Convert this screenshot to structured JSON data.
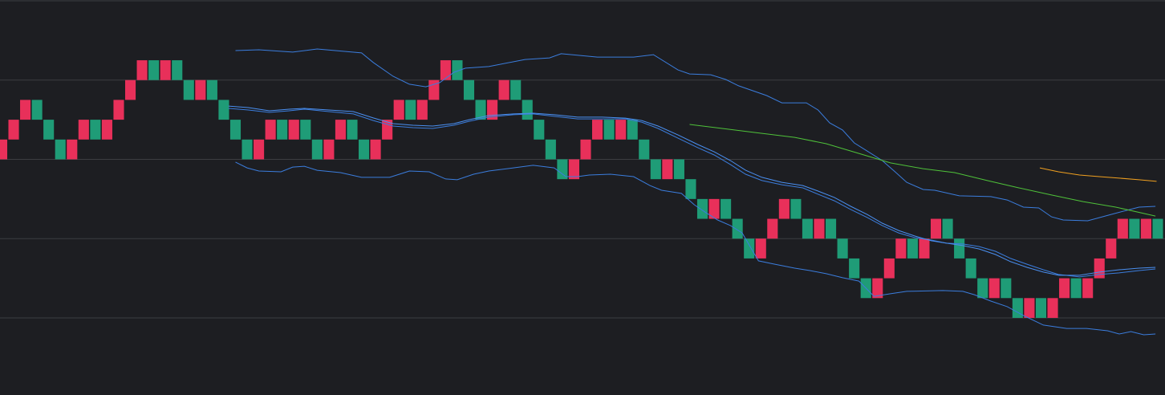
{
  "chart_data": {
    "type": "renko",
    "up_color": "#e8305a",
    "down_color": "#1f9c77",
    "background": "#1d1e22",
    "grid": true,
    "grid_color": "#3c3d41",
    "xlim": [
      -0.17,
      99.62
    ],
    "ylim": [
      0.11,
      20.04
    ],
    "yticks": [
      4,
      8,
      12,
      16,
      20
    ],
    "open": [
      12,
      13,
      14,
      15,
      14,
      13,
      12,
      13,
      14,
      13,
      14,
      15,
      16,
      17,
      16,
      17,
      16,
      15,
      16,
      15,
      14,
      13,
      12,
      13,
      14,
      13,
      14,
      13,
      12,
      13,
      14,
      13,
      12,
      13,
      14,
      15,
      14,
      15,
      16,
      17,
      16,
      15,
      14,
      15,
      16,
      15,
      14,
      13,
      12,
      11,
      12,
      13,
      14,
      13,
      14,
      13,
      12,
      11,
      12,
      11,
      10,
      9,
      10,
      9,
      8,
      7,
      8,
      9,
      10,
      9,
      8,
      9,
      8,
      7,
      6,
      5,
      6,
      7,
      8,
      7,
      8,
      9,
      8,
      7,
      6,
      5,
      6,
      5,
      4,
      5,
      4,
      5,
      6,
      5,
      6,
      7,
      8,
      9,
      8,
      9
    ],
    "close": [
      13,
      14,
      15,
      14,
      13,
      12,
      13,
      14,
      13,
      14,
      15,
      16,
      17,
      16,
      17,
      16,
      15,
      16,
      15,
      14,
      13,
      12,
      13,
      14,
      13,
      14,
      13,
      12,
      13,
      14,
      13,
      12,
      13,
      14,
      15,
      14,
      15,
      16,
      17,
      16,
      15,
      14,
      15,
      16,
      15,
      14,
      13,
      12,
      11,
      12,
      13,
      14,
      13,
      14,
      13,
      12,
      11,
      12,
      11,
      10,
      9,
      10,
      9,
      8,
      7,
      8,
      9,
      10,
      9,
      8,
      9,
      8,
      7,
      6,
      5,
      6,
      7,
      8,
      7,
      8,
      9,
      8,
      7,
      6,
      5,
      6,
      5,
      4,
      5,
      4,
      5,
      6,
      5,
      6,
      7,
      8,
      9,
      8,
      9,
      8
    ],
    "overlays": [
      {
        "color": "#3b7ddd",
        "x": [
          20.0,
          22.0,
          24.9,
          27.0,
          30.8,
          31.8,
          33.5,
          34.9,
          36.3,
          37.5,
          38.7,
          39.7,
          41.7,
          44.8,
          46.9,
          47.9,
          51.0,
          54.1,
          55.8,
          57.9,
          58.9,
          60.7,
          62.0,
          63.1,
          65.5,
          66.8,
          68.9,
          69.9,
          70.9,
          72.0,
          73.0,
          74.1,
          75.4,
          76.5,
          77.5,
          78.9,
          79.9,
          82.0,
          84.7,
          86.1,
          87.5,
          88.8,
          89.9,
          90.9,
          93.0,
          95.0,
          97.4,
          98.8
        ],
        "values": [
          17.49,
          17.53,
          17.41,
          17.57,
          17.37,
          16.89,
          16.19,
          15.79,
          15.66,
          15.87,
          16.39,
          16.6,
          16.68,
          17.04,
          17.12,
          17.33,
          17.16,
          17.16,
          17.28,
          16.51,
          16.31,
          16.27,
          16.03,
          15.71,
          15.22,
          14.85,
          14.85,
          14.49,
          13.84,
          13.48,
          12.83,
          12.42,
          11.94,
          11.37,
          10.84,
          10.48,
          10.44,
          10.16,
          10.12,
          9.95,
          9.59,
          9.55,
          9.1,
          8.94,
          8.9,
          9.22,
          9.59,
          9.63
        ]
      },
      {
        "color": "#3b7ddd",
        "x": [
          20.0,
          21.0,
          22.0,
          23.9,
          24.9,
          25.9,
          27.0,
          29.0,
          30.8,
          33.2,
          34.9,
          36.6,
          38.0,
          39.0,
          40.4,
          41.7,
          43.8,
          45.5,
          47.3,
          48.3,
          49.3,
          50.3,
          52.1,
          54.1,
          55.5,
          56.5,
          58.2,
          59.3,
          60.3,
          61.3,
          62.4,
          63.4,
          64.8,
          66.2,
          67.9,
          69.2,
          70.6,
          72.0,
          73.4,
          74.7,
          76.1,
          77.5,
          80.6,
          82.3,
          83.3,
          84.7,
          86.1,
          87.5,
          89.2,
          91.2,
          92.9,
          94.7,
          95.7,
          96.7,
          97.8,
          98.8
        ],
        "values": [
          11.86,
          11.57,
          11.41,
          11.37,
          11.61,
          11.65,
          11.45,
          11.33,
          11.09,
          11.09,
          11.41,
          11.37,
          11.01,
          10.97,
          11.25,
          11.41,
          11.57,
          11.7,
          11.57,
          11.13,
          11.13,
          11.21,
          11.25,
          11.13,
          10.68,
          10.44,
          10.28,
          9.71,
          9.31,
          8.94,
          8.66,
          8.29,
          6.88,
          6.71,
          6.51,
          6.39,
          6.23,
          6.03,
          5.86,
          5.09,
          5.22,
          5.34,
          5.38,
          5.34,
          5.17,
          4.85,
          4.57,
          4.12,
          3.64,
          3.47,
          3.47,
          3.35,
          3.19,
          3.31,
          3.15,
          3.19
        ]
      },
      {
        "color": "#3b7ddd",
        "x": [
          19.4,
          21.1,
          22.9,
          24.6,
          25.9,
          28.0,
          30.1,
          31.8,
          33.5,
          35.2,
          36.9,
          38.7,
          40.0,
          41.7,
          43.8,
          45.5,
          47.3,
          49.3,
          51.4,
          53.4,
          54.8,
          56.2,
          57.9,
          59.6,
          61.0,
          62.4,
          63.7,
          65.1,
          66.8,
          68.6,
          69.9,
          71.3,
          72.7,
          74.1,
          75.4,
          76.8,
          78.2,
          79.6,
          80.9,
          82.3,
          83.7,
          85.1,
          86.4,
          87.8,
          89.2,
          90.5,
          92.3,
          94.0,
          95.7,
          97.4,
          98.8
        ],
        "values": [
          14.57,
          14.49,
          14.37,
          14.45,
          14.53,
          14.41,
          14.29,
          13.96,
          13.68,
          13.6,
          13.56,
          13.72,
          13.92,
          14.13,
          14.25,
          14.29,
          14.17,
          14.04,
          14.04,
          14.04,
          13.88,
          13.56,
          13.07,
          12.59,
          12.22,
          11.74,
          11.25,
          10.93,
          10.72,
          10.56,
          10.24,
          9.91,
          9.47,
          9.07,
          8.66,
          8.29,
          8.05,
          7.93,
          7.77,
          7.73,
          7.6,
          7.36,
          7.0,
          6.71,
          6.43,
          6.19,
          6.07,
          6.19,
          6.27,
          6.39,
          6.47
        ]
      },
      {
        "color": "#4a8ff0",
        "x": [
          19.4,
          21.1,
          22.9,
          24.6,
          25.9,
          28.0,
          30.1,
          31.8,
          33.5,
          35.2,
          36.9,
          38.7,
          40.0,
          41.7,
          43.8,
          45.5,
          47.3,
          49.3,
          51.4,
          53.4,
          54.8,
          56.2,
          57.9,
          59.6,
          61.0,
          62.4,
          63.7,
          65.1,
          66.8,
          68.6,
          69.9,
          71.3,
          72.7,
          74.1,
          75.4,
          76.8,
          78.2,
          79.6,
          80.9,
          82.3,
          83.7,
          85.1,
          86.4,
          87.8,
          89.2,
          90.5,
          92.3,
          94.0,
          95.7,
          97.4,
          98.8
        ],
        "values": [
          14.69,
          14.61,
          14.45,
          14.53,
          14.57,
          14.49,
          14.41,
          14.09,
          13.8,
          13.72,
          13.68,
          13.8,
          14.0,
          14.21,
          14.29,
          14.33,
          14.25,
          14.13,
          14.13,
          14.08,
          13.96,
          13.68,
          13.23,
          12.75,
          12.38,
          11.94,
          11.45,
          11.09,
          10.84,
          10.68,
          10.4,
          10.08,
          9.63,
          9.22,
          8.78,
          8.41,
          8.13,
          7.89,
          7.77,
          7.65,
          7.48,
          7.2,
          6.84,
          6.55,
          6.31,
          6.15,
          6.15,
          6.31,
          6.43,
          6.51,
          6.55
        ]
      },
      {
        "color": "#4fc23a",
        "x": [
          58.9,
          61.7,
          64.4,
          67.9,
          70.6,
          73.4,
          76.1,
          78.9,
          81.6,
          84.4,
          87.1,
          89.9,
          92.6,
          95.4,
          98.8
        ],
        "values": [
          13.76,
          13.56,
          13.36,
          13.11,
          12.79,
          12.3,
          11.82,
          11.53,
          11.33,
          10.93,
          10.56,
          10.2,
          9.87,
          9.59,
          9.14
        ]
      },
      {
        "color": "#f0a020",
        "x": [
          88.9,
          90.5,
          92.3,
          94.0,
          95.7,
          97.4,
          98.9
        ],
        "values": [
          11.57,
          11.37,
          11.21,
          11.13,
          11.05,
          10.97,
          10.89
        ]
      }
    ]
  }
}
